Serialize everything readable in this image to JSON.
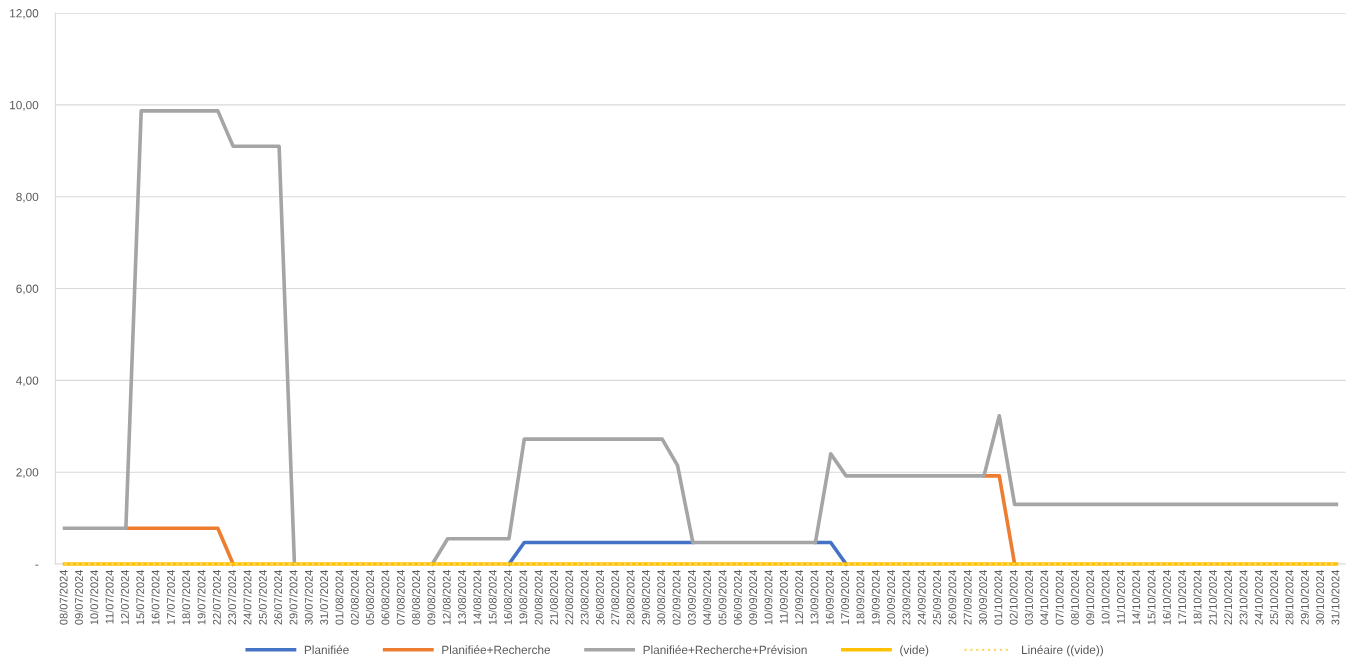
{
  "chart_data": {
    "type": "line",
    "categories": [
      "08/07/2024",
      "09/07/2024",
      "10/07/2024",
      "11/07/2024",
      "12/07/2024",
      "15/07/2024",
      "16/07/2024",
      "17/07/2024",
      "18/07/2024",
      "19/07/2024",
      "22/07/2024",
      "23/07/2024",
      "24/07/2024",
      "25/07/2024",
      "26/07/2024",
      "29/07/2024",
      "30/07/2024",
      "31/07/2024",
      "01/08/2024",
      "02/08/2024",
      "05/08/2024",
      "06/08/2024",
      "07/08/2024",
      "08/08/2024",
      "09/08/2024",
      "12/08/2024",
      "13/08/2024",
      "14/08/2024",
      "15/08/2024",
      "16/08/2024",
      "19/08/2024",
      "20/08/2024",
      "21/08/2024",
      "22/08/2024",
      "23/08/2024",
      "26/08/2024",
      "27/08/2024",
      "28/08/2024",
      "29/08/2024",
      "30/08/2024",
      "02/09/2024",
      "03/09/2024",
      "04/09/2024",
      "05/09/2024",
      "06/09/2024",
      "09/09/2024",
      "10/09/2024",
      "11/09/2024",
      "12/09/2024",
      "13/09/2024",
      "16/09/2024",
      "17/09/2024",
      "18/09/2024",
      "19/09/2024",
      "20/09/2024",
      "23/09/2024",
      "24/09/2024",
      "25/09/2024",
      "26/09/2024",
      "27/09/2024",
      "30/09/2024",
      "01/10/2024",
      "02/10/2024",
      "03/10/2024",
      "04/10/2024",
      "07/10/2024",
      "08/10/2024",
      "09/10/2024",
      "10/10/2024",
      "11/10/2024",
      "14/10/2024",
      "15/10/2024",
      "16/10/2024",
      "17/10/2024",
      "18/10/2024",
      "21/10/2024",
      "22/10/2024",
      "23/10/2024",
      "24/10/2024",
      "25/10/2024",
      "28/10/2024",
      "29/10/2024",
      "30/10/2024",
      "31/10/2024"
    ],
    "series": [
      {
        "name": "Planifiée",
        "color": "#4472c4",
        "line_style": "solid",
        "values": [
          null,
          null,
          null,
          null,
          null,
          null,
          null,
          null,
          null,
          null,
          null,
          null,
          null,
          null,
          null,
          null,
          null,
          null,
          null,
          null,
          null,
          null,
          null,
          null,
          null,
          null,
          null,
          null,
          null,
          0,
          0.47,
          0.47,
          0.47,
          0.47,
          0.47,
          0.47,
          0.47,
          0.47,
          0.47,
          0.47,
          0.47,
          0.47,
          null,
          null,
          null,
          null,
          null,
          null,
          null,
          0.47,
          0.47,
          0,
          null,
          null,
          null,
          null,
          null,
          null,
          null,
          null,
          null,
          null,
          null,
          null,
          null,
          null,
          null,
          null,
          null,
          null,
          null,
          null,
          null,
          null,
          null,
          null,
          null,
          null,
          null,
          null,
          null,
          null,
          null,
          null
        ]
      },
      {
        "name": "Planifiée+Recherche",
        "color": "#ed7d31",
        "line_style": "solid",
        "values": [
          null,
          null,
          null,
          null,
          0.78,
          0.78,
          0.78,
          0.78,
          0.78,
          0.78,
          0.78,
          0,
          null,
          null,
          null,
          null,
          null,
          null,
          null,
          null,
          null,
          null,
          null,
          null,
          null,
          null,
          null,
          null,
          null,
          null,
          null,
          null,
          null,
          null,
          null,
          null,
          null,
          null,
          null,
          null,
          null,
          null,
          null,
          null,
          null,
          null,
          null,
          null,
          null,
          null,
          null,
          null,
          null,
          null,
          null,
          null,
          null,
          null,
          null,
          null,
          1.92,
          1.92,
          0,
          null,
          null,
          null,
          null,
          null,
          null,
          null,
          null,
          null,
          null,
          null,
          null,
          null,
          null,
          null,
          null,
          null,
          null,
          null,
          null,
          null
        ]
      },
      {
        "name": "Planifiée+Recherche+Prévision",
        "color": "#a5a5a5",
        "line_style": "solid",
        "values": [
          0.78,
          0.78,
          0.78,
          0.78,
          0.78,
          9.87,
          9.87,
          9.87,
          9.87,
          9.87,
          9.87,
          9.1,
          9.1,
          9.1,
          9.1,
          0,
          null,
          null,
          null,
          null,
          null,
          null,
          null,
          null,
          0,
          0.55,
          0.55,
          0.55,
          0.55,
          0.55,
          2.72,
          2.72,
          2.72,
          2.72,
          2.72,
          2.72,
          2.72,
          2.72,
          2.72,
          2.72,
          2.15,
          0.47,
          0.47,
          0.47,
          0.47,
          0.47,
          0.47,
          0.47,
          0.47,
          0.47,
          2.4,
          1.92,
          1.92,
          1.92,
          1.92,
          1.92,
          1.92,
          1.92,
          1.92,
          1.92,
          1.92,
          3.23,
          1.3,
          1.3,
          1.3,
          1.3,
          1.3,
          1.3,
          1.3,
          1.3,
          1.3,
          1.3,
          1.3,
          1.3,
          1.3,
          1.3,
          1.3,
          1.3,
          1.3,
          1.3,
          1.3,
          1.3,
          1.3,
          1.3
        ]
      },
      {
        "name": "(vide)",
        "color": "#ffc000",
        "line_style": "solid",
        "values": [
          0,
          0,
          0,
          0,
          0,
          0,
          0,
          0,
          0,
          0,
          0,
          0,
          0,
          0,
          0,
          0,
          0,
          0,
          0,
          0,
          0,
          0,
          0,
          0,
          0,
          0,
          0,
          0,
          0,
          0,
          0,
          0,
          0,
          0,
          0,
          0,
          0,
          0,
          0,
          0,
          0,
          0,
          0,
          0,
          0,
          0,
          0,
          0,
          0,
          0,
          0,
          0,
          0,
          0,
          0,
          0,
          0,
          0,
          0,
          0,
          0,
          0,
          0,
          0,
          0,
          0,
          0,
          0,
          0,
          0,
          0,
          0,
          0,
          0,
          0,
          0,
          0,
          0,
          0,
          0,
          0,
          0,
          0,
          0
        ]
      },
      {
        "name": "Linéaire ((vide))",
        "color": "#ffd966",
        "line_style": "dotted",
        "values": [
          0,
          0,
          0,
          0,
          0,
          0,
          0,
          0,
          0,
          0,
          0,
          0,
          0,
          0,
          0,
          0,
          0,
          0,
          0,
          0,
          0,
          0,
          0,
          0,
          0,
          0,
          0,
          0,
          0,
          0,
          0,
          0,
          0,
          0,
          0,
          0,
          0,
          0,
          0,
          0,
          0,
          0,
          0,
          0,
          0,
          0,
          0,
          0,
          0,
          0,
          0,
          0,
          0,
          0,
          0,
          0,
          0,
          0,
          0,
          0,
          0,
          0,
          0,
          0,
          0,
          0,
          0,
          0,
          0,
          0,
          0,
          0,
          0,
          0,
          0,
          0,
          0,
          0,
          0,
          0,
          0,
          0,
          0,
          0
        ]
      }
    ],
    "ylim": [
      0,
      12
    ],
    "yticks": [
      {
        "value": 0,
        "label": "-"
      },
      {
        "value": 2,
        "label": "2,00"
      },
      {
        "value": 4,
        "label": "4,00"
      },
      {
        "value": 6,
        "label": "6,00"
      },
      {
        "value": 8,
        "label": "8,00"
      },
      {
        "value": 10,
        "label": "10,00"
      },
      {
        "value": 12,
        "label": "12,00"
      }
    ],
    "grid": "y",
    "legend": "bottom",
    "marker": "none"
  }
}
